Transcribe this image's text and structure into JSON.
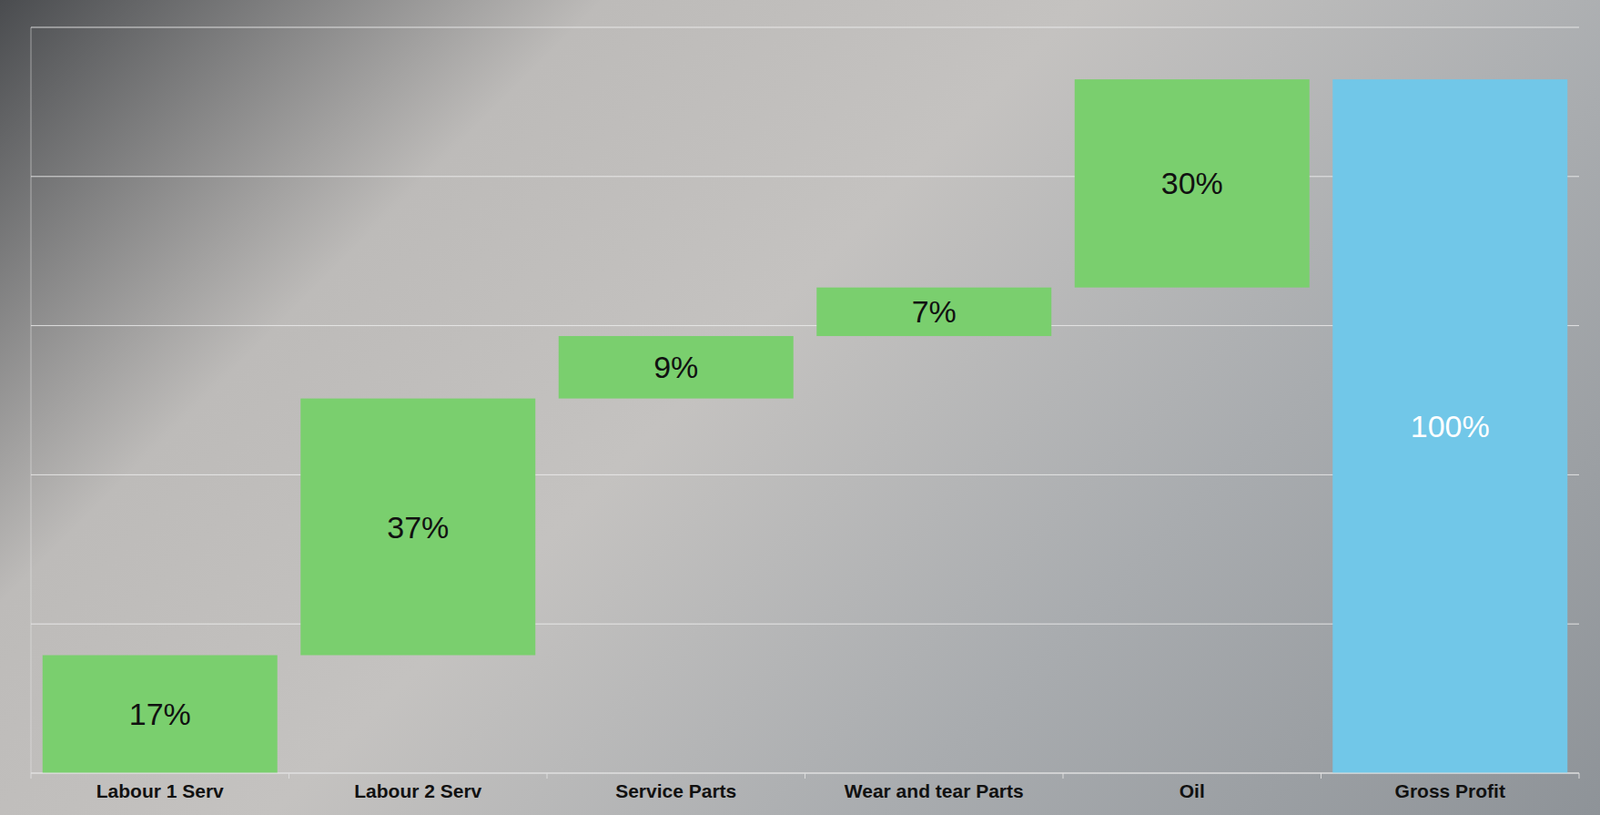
{
  "chart_data": {
    "type": "waterfall",
    "categories": [
      "Labour 1 Serv",
      "Labour 2 Serv",
      "Service Parts",
      "Wear and tear Parts",
      "Oil",
      "Gross Profit"
    ],
    "values": [
      17,
      37,
      9,
      7,
      30,
      100
    ],
    "value_labels": [
      "17%",
      "37%",
      "9%",
      "7%",
      "30%",
      "100%"
    ],
    "totals": [
      false,
      false,
      false,
      false,
      false,
      true
    ],
    "colors": [
      "#7acf6e",
      "#7acf6e",
      "#7acf6e",
      "#7acf6e",
      "#7acf6e",
      "#71c7e8"
    ],
    "ylim": [
      0,
      107.5
    ],
    "yticks": [
      0,
      21.5,
      43,
      64.5,
      86,
      107.5
    ],
    "grid": true,
    "data_labels": true,
    "tick_labels": "x"
  }
}
